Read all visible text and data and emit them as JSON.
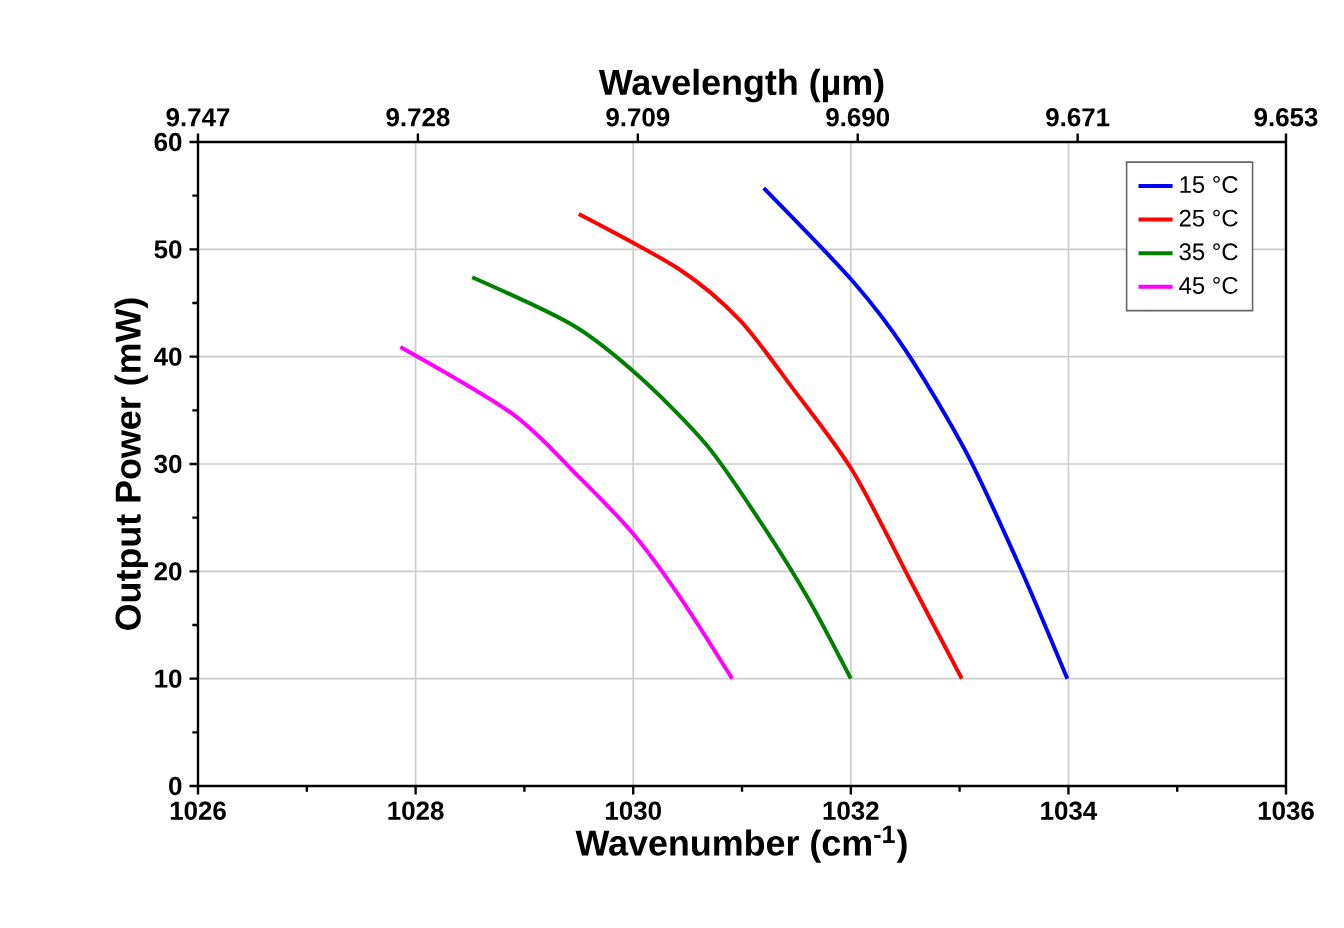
{
  "chart_data": {
    "type": "line",
    "xlabel": "Wavenumber (cm$^{-1}$)",
    "ylabel": "Output Power (mW)",
    "x2label": "Wavelength (µm)",
    "xlim": [
      1026,
      1036
    ],
    "xticks": [
      1026,
      1028,
      1030,
      1032,
      1034,
      1036
    ],
    "ylim": [
      0,
      60
    ],
    "yticks": [
      0,
      10,
      20,
      30,
      40,
      50,
      60
    ],
    "x2lim": [
      9.747,
      9.653
    ],
    "x2ticks": [
      {
        "value": 9.747,
        "label": "9.747"
      },
      {
        "value": 9.728,
        "label": "9.728"
      },
      {
        "value": 9.709,
        "label": "9.709"
      },
      {
        "value": 9.69,
        "label": "9.690"
      },
      {
        "value": 9.671,
        "label": "9.671"
      },
      {
        "value": 9.653,
        "label": "9.653"
      }
    ],
    "grid": true,
    "legend": "top right",
    "marker": "none",
    "line_style": "solid",
    "series": [
      {
        "name": "15 °C",
        "color": "#0000ff",
        "x": [
          1031.2,
          1032.02,
          1032.51,
          1033.06,
          1033.55,
          1033.99
        ],
        "values": [
          55.7,
          47.0,
          40.5,
          31.1,
          20.5,
          10.0
        ]
      },
      {
        "name": "25 °C",
        "color": "#ff0000",
        "x": [
          1029.5,
          1030.43,
          1030.98,
          1031.47,
          1032.02,
          1032.57,
          1033.02
        ],
        "values": [
          53.3,
          48.1,
          43.4,
          37.0,
          29.3,
          18.7,
          10.0
        ]
      },
      {
        "name": "35 °C",
        "color": "#008000",
        "x": [
          1028.52,
          1029.45,
          1030.06,
          1030.68,
          1031.17,
          1031.6,
          1032.0
        ],
        "values": [
          47.4,
          42.9,
          38.1,
          31.7,
          24.6,
          17.6,
          10.0
        ]
      },
      {
        "name": "45 °C",
        "color": "#ff00ff",
        "x": [
          1027.86,
          1028.9,
          1029.51,
          1030.0,
          1030.43,
          1030.91
        ],
        "values": [
          40.9,
          34.6,
          28.7,
          23.5,
          17.6,
          10.0
        ]
      }
    ]
  }
}
